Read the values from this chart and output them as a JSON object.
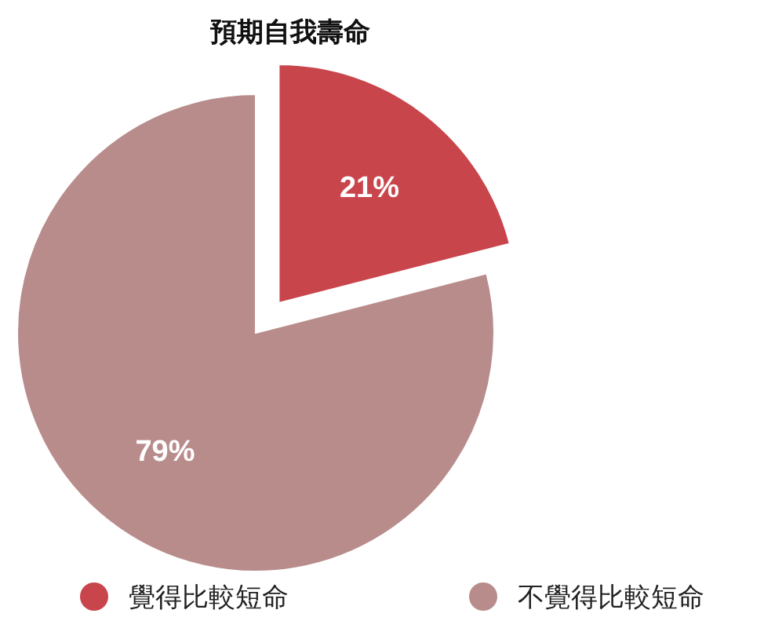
{
  "chart_data": {
    "type": "pie",
    "title": "預期自我壽命",
    "categories": [
      "覺得比較短命",
      "不覺得比較短命"
    ],
    "values": [
      21,
      79
    ],
    "colors": [
      "#c9454c",
      "#b98c8c"
    ],
    "value_labels": [
      "21%",
      "79%"
    ],
    "legend": "bottom"
  }
}
